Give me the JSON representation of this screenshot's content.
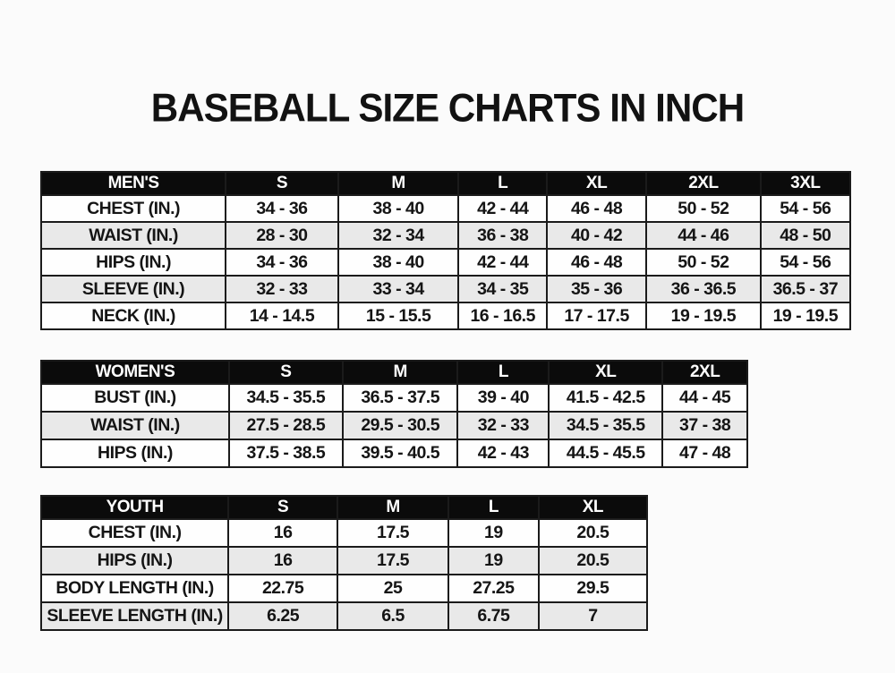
{
  "page_title": "BASEBALL SIZE CHARTS IN INCH",
  "colors": {
    "header_background": "#0b0b0b",
    "header_text": "#ffffff",
    "row_alt_background": "#e9e9e9",
    "row_background": "#fefefe",
    "border": "#1b1b1b",
    "text": "#151515",
    "page_background": "#fbfbfb"
  },
  "chart_data": [
    {
      "type": "table",
      "title": "MEN'S",
      "columns": [
        "MEN'S",
        "S",
        "M",
        "L",
        "XL",
        "2XL",
        "3XL"
      ],
      "rows": [
        {
          "label": "CHEST (IN.)",
          "values": [
            "34 - 36",
            "38 - 40",
            "42 - 44",
            "46 - 48",
            "50 - 52",
            "54 - 56"
          ]
        },
        {
          "label": "WAIST (IN.)",
          "values": [
            "28 - 30",
            "32 - 34",
            "36 - 38",
            "40 - 42",
            "44 - 46",
            "48 - 50"
          ]
        },
        {
          "label": "HIPS (IN.)",
          "values": [
            "34 - 36",
            "38 - 40",
            "42 - 44",
            "46 - 48",
            "50 - 52",
            "54 - 56"
          ]
        },
        {
          "label": "SLEEVE (IN.)",
          "values": [
            "32 - 33",
            "33 - 34",
            "34 - 35",
            "35 - 36",
            "36 - 36.5",
            "36.5 - 37"
          ]
        },
        {
          "label": "NECK (IN.)",
          "values": [
            "14 - 14.5",
            "15 - 15.5",
            "16 - 16.5",
            "17 - 17.5",
            "19 - 19.5",
            "19 - 19.5"
          ]
        }
      ]
    },
    {
      "type": "table",
      "title": "WOMEN'S",
      "columns": [
        "WOMEN'S",
        "S",
        "M",
        "L",
        "XL",
        "2XL"
      ],
      "rows": [
        {
          "label": "BUST (IN.)",
          "values": [
            "34.5 - 35.5",
            "36.5 - 37.5",
            "39 - 40",
            "41.5 - 42.5",
            "44 - 45"
          ]
        },
        {
          "label": "WAIST (IN.)",
          "values": [
            "27.5 - 28.5",
            "29.5 - 30.5",
            "32 - 33",
            "34.5 - 35.5",
            "37 - 38"
          ]
        },
        {
          "label": "HIPS (IN.)",
          "values": [
            "37.5 - 38.5",
            "39.5 - 40.5",
            "42 - 43",
            "44.5 - 45.5",
            "47 - 48"
          ]
        }
      ]
    },
    {
      "type": "table",
      "title": "YOUTH",
      "columns": [
        "YOUTH",
        "S",
        "M",
        "L",
        "XL"
      ],
      "rows": [
        {
          "label": "CHEST (IN.)",
          "values": [
            "16",
            "17.5",
            "19",
            "20.5"
          ]
        },
        {
          "label": "HIPS (IN.)",
          "values": [
            "16",
            "17.5",
            "19",
            "20.5"
          ]
        },
        {
          "label": "BODY LENGTH (IN.)",
          "values": [
            "22.75",
            "25",
            "27.25",
            "29.5"
          ]
        },
        {
          "label": "SLEEVE LENGTH (IN.)",
          "values": [
            "6.25",
            "6.5",
            "6.75",
            "7"
          ]
        }
      ]
    }
  ]
}
